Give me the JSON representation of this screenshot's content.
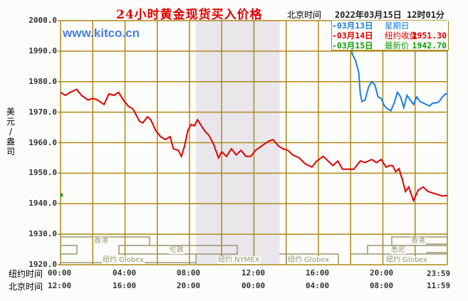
{
  "header": {
    "title": "24小时黄金现货买入价格",
    "beijing_time_label": "北京时间",
    "datetime": "2022年03月15日 12时01分",
    "brand": "www.kitco.cn"
  },
  "legend": {
    "rows": [
      {
        "date": "-03月13日",
        "name": "星期日",
        "value": "",
        "color": "#1a7fe0"
      },
      {
        "date": "-03月14日",
        "name": "纽约收盘",
        "value": "1951.30",
        "color": "#e00000"
      },
      {
        "date": "-03月15日",
        "name": "最新价",
        "value": "1942.70",
        "color": "#10a010"
      }
    ]
  },
  "axes": {
    "y_label": [
      "美",
      "元",
      "/",
      "盎",
      "司"
    ],
    "y_ticks": [
      "2000.0",
      "1990.0",
      "1980.0",
      "1970.0",
      "1960.0",
      "1950.0",
      "1940.0",
      "1930.0",
      "1920.0"
    ],
    "ny_time_label": "纽约时间",
    "bj_time_label": "北京时间",
    "ny_ticks": [
      "00:00",
      "04:00",
      "08:00",
      "12:00",
      "16:00",
      "20:00",
      "23:59"
    ],
    "bj_ticks": [
      "12:00",
      "16:00",
      "20:00",
      "00:00",
      "04:00",
      "08:00",
      "11:59"
    ]
  },
  "sessions": {
    "hongkong_1": "香港",
    "london": "伦敦",
    "ny_globex_1": "纽约 Globex",
    "ny_nymex": "纽约 NYMEX",
    "ny_globex_2": "纽约 Globex",
    "hongkong_2": "香港",
    "sydney": "悉尼",
    "ny_globex_3": "纽约 Globex"
  },
  "colors": {
    "grid": "#b08818",
    "nymex_shade": "#e9e7ec",
    "series_0314": "#e00000",
    "series_0313": "#1a7fe0",
    "series_0315": "#10a010",
    "session_band": "#9a9670"
  },
  "chart_data": {
    "type": "line",
    "title": "24小时黄金现货买入价格",
    "xlabel": "纽约时间 / 北京时间",
    "ylabel": "美元/盎司",
    "ylim": [
      1920,
      2000
    ],
    "xlim_hours_ny": [
      0,
      24
    ],
    "grid": true,
    "x_ticks_ny": [
      "00:00",
      "04:00",
      "08:00",
      "12:00",
      "16:00",
      "20:00",
      "23:59"
    ],
    "x_ticks_bj": [
      "12:00",
      "16:00",
      "20:00",
      "00:00",
      "04:00",
      "08:00",
      "11:59"
    ],
    "series": [
      {
        "name": "03月14日",
        "color": "#e00000",
        "x_hours_ny": [
          0,
          0.3,
          0.6,
          1.0,
          1.3,
          1.7,
          2.0,
          2.3,
          2.7,
          3.0,
          3.3,
          3.6,
          3.9,
          4.2,
          4.5,
          4.9,
          5.1,
          5.4,
          5.6,
          5.9,
          6.2,
          6.5,
          6.8,
          7.0,
          7.3,
          7.5,
          7.7,
          7.9,
          8.1,
          8.3,
          8.5,
          8.8,
          9.0,
          9.2,
          9.5,
          9.8,
          10.0,
          10.3,
          10.6,
          10.9,
          11.2,
          11.5,
          11.8,
          12.1,
          12.5,
          12.9,
          13.2,
          13.5,
          13.8,
          14.1,
          14.4,
          14.8,
          15.2,
          15.6,
          15.9,
          16.3,
          16.6,
          16.9,
          17.2,
          17.5,
          17.8,
          18.2,
          18.6,
          18.9,
          19.3,
          19.6,
          19.9,
          20.2,
          20.4,
          20.6,
          20.8,
          21.0,
          21.2,
          21.4,
          21.6,
          21.9,
          22.2,
          22.5,
          22.8,
          23.1,
          23.4,
          23.7,
          24.0
        ],
        "values": [
          1976.5,
          1975.5,
          1976.5,
          1977.5,
          1975.5,
          1974,
          1974.5,
          1974,
          1972.5,
          1976,
          1975.5,
          1976.5,
          1974,
          1972,
          1971,
          1967,
          1966.5,
          1968.5,
          1967.5,
          1964,
          1962,
          1961,
          1962,
          1958,
          1957.5,
          1955.5,
          1959,
          1964,
          1966,
          1965.5,
          1967.5,
          1965,
          1963.5,
          1962.5,
          1959.5,
          1955,
          1957,
          1955.5,
          1958,
          1956,
          1957.5,
          1955.5,
          1955.5,
          1957.5,
          1959,
          1960.5,
          1961,
          1959,
          1958,
          1957.5,
          1956,
          1955,
          1953,
          1952,
          1954,
          1955.5,
          1954,
          1952.5,
          1954,
          1951.3,
          1951.3,
          1951.3,
          1954,
          1953.5,
          1954.5,
          1953.5,
          1954.5,
          1952,
          1952.5,
          1952.5,
          1950.5,
          1951.5,
          1948,
          1944,
          1945.5,
          1941,
          1944.5,
          1945.5,
          1944,
          1943.5,
          1943,
          1942.5,
          1942.7
        ]
      },
      {
        "name": "03月13日",
        "color": "#1a7fe0",
        "x_hours_ny": [
          18.0,
          18.1,
          18.3,
          18.5,
          18.6,
          18.7,
          18.9,
          19.1,
          19.3,
          19.5,
          19.7,
          19.9,
          20.1,
          20.3,
          20.5,
          20.7,
          20.9,
          21.1,
          21.3,
          21.5,
          21.7,
          21.9,
          22.1,
          22.3,
          22.5,
          22.7,
          22.9,
          23.1,
          23.3,
          23.5,
          23.7,
          23.9,
          24.0
        ],
        "values": [
          1993,
          1989,
          1987,
          1983,
          1976,
          1973.5,
          1974,
          1978,
          1980,
          1979,
          1975,
          1974.5,
          1972,
          1971,
          1970.5,
          1973,
          1976.5,
          1975,
          1971.5,
          1975.5,
          1974,
          1972.5,
          1975,
          1973.5,
          1973,
          1972.5,
          1972,
          1973,
          1973,
          1973.5,
          1975,
          1976,
          1976
        ]
      },
      {
        "name": "03月15日",
        "color": "#10a010",
        "x_hours_ny": [
          0
        ],
        "values": [
          1942.7
        ]
      }
    ],
    "legend": [
      {
        "label": "03月13日 星期日",
        "color": "#1a7fe0"
      },
      {
        "label": "03月14日 纽约收盘 1951.30",
        "color": "#e00000"
      },
      {
        "label": "03月15日 最新价 1942.70",
        "color": "#10a010"
      }
    ],
    "annotations": [
      "www.kitco.cn",
      "北京时间 2022年03月15日 12时01分"
    ],
    "shaded_region_hours_ny": [
      8.4,
      13.6
    ],
    "shaded_region_label": "纽约 NYMEX"
  }
}
